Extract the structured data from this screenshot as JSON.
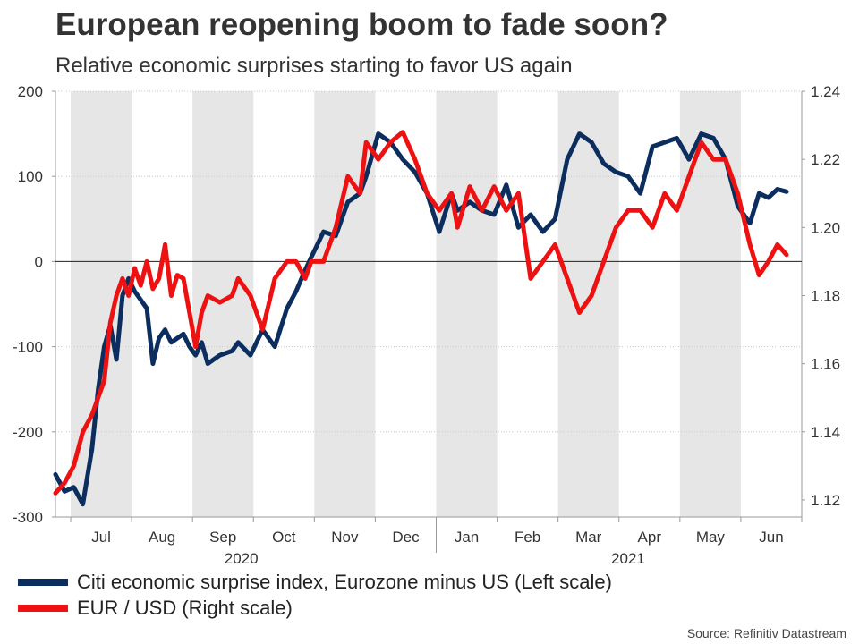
{
  "title": "European reopening boom to fade soon?",
  "subtitle": "Relative economic surprises starting to favor US again",
  "source": "Source: Refinitiv Datastream",
  "legend": [
    {
      "label": "Citi economic surprise index, Eurozone minus US (Left scale)",
      "color": "#0b2e5e"
    },
    {
      "label": "EUR / USD (Right scale)",
      "color": "#ee1111"
    }
  ],
  "chart_data": {
    "type": "line",
    "title": "European reopening boom to fade soon?",
    "left_axis": {
      "ylim": [
        -300,
        200
      ],
      "ticks": [
        -300,
        -200,
        -100,
        0,
        100,
        200
      ],
      "tick_labels": [
        "-300",
        "-200",
        "-100",
        "0",
        "100",
        "200"
      ]
    },
    "right_axis": {
      "ylim": [
        1.115,
        1.24
      ],
      "ticks": [
        1.12,
        1.14,
        1.16,
        1.18,
        1.2,
        1.22,
        1.24
      ],
      "tick_labels": [
        "1.12",
        "1.14",
        "1.16",
        "1.18",
        "1.20",
        "1.22",
        "1.24"
      ]
    },
    "x_range": [
      0,
      12.25
    ],
    "months": [
      "Jul",
      "Aug",
      "Sep",
      "Oct",
      "Nov",
      "Dec",
      "Jan",
      "Feb",
      "Mar",
      "Apr",
      "May",
      "Jun"
    ],
    "years": [
      {
        "label": "2020",
        "at": 3.05
      },
      {
        "label": "2021",
        "at": 9.4
      }
    ],
    "series": [
      {
        "name": "Citi economic surprise index, Eurozone minus US (Left scale)",
        "axis": "left",
        "color": "#0b2e5e",
        "x": [
          0,
          0.15,
          0.3,
          0.45,
          0.6,
          0.7,
          0.8,
          0.9,
          1.0,
          1.1,
          1.2,
          1.3,
          1.4,
          1.5,
          1.6,
          1.7,
          1.8,
          1.9,
          2.0,
          2.1,
          2.2,
          2.3,
          2.4,
          2.5,
          2.7,
          2.9,
          3.0,
          3.2,
          3.4,
          3.6,
          3.8,
          3.95,
          4.1,
          4.2,
          4.4,
          4.6,
          4.8,
          5.0,
          5.1,
          5.3,
          5.5,
          5.7,
          5.9,
          6.1,
          6.3,
          6.5,
          6.6,
          6.8,
          7.0,
          7.2,
          7.4,
          7.6,
          7.8,
          8.0,
          8.2,
          8.4,
          8.6,
          8.8,
          9.0,
          9.2,
          9.4,
          9.6,
          9.8,
          10.0,
          10.2,
          10.4,
          10.6,
          10.8,
          11.0,
          11.2,
          11.4,
          11.55,
          11.7,
          11.85,
          12.0
        ],
        "values": [
          -250,
          -270,
          -265,
          -285,
          -220,
          -150,
          -100,
          -75,
          -115,
          -40,
          -20,
          -35,
          -45,
          -55,
          -120,
          -90,
          -80,
          -95,
          -90,
          -85,
          -100,
          -110,
          -95,
          -120,
          -110,
          -105,
          -95,
          -110,
          -80,
          -100,
          -55,
          -35,
          -10,
          5,
          35,
          30,
          70,
          80,
          100,
          150,
          140,
          120,
          105,
          80,
          35,
          80,
          60,
          70,
          60,
          55,
          90,
          40,
          55,
          35,
          50,
          120,
          150,
          140,
          115,
          105,
          100,
          80,
          135,
          140,
          145,
          120,
          150,
          145,
          120,
          65,
          45,
          80,
          75,
          85,
          82
        ]
      },
      {
        "name": "EUR / USD (Right scale)",
        "axis": "right",
        "color": "#ee1111",
        "x": [
          0,
          0.15,
          0.3,
          0.45,
          0.6,
          0.8,
          0.9,
          1.0,
          1.1,
          1.2,
          1.3,
          1.4,
          1.5,
          1.6,
          1.7,
          1.8,
          1.9,
          2.0,
          2.1,
          2.2,
          2.3,
          2.4,
          2.5,
          2.7,
          2.9,
          3.0,
          3.2,
          3.4,
          3.6,
          3.8,
          3.95,
          4.1,
          4.2,
          4.4,
          4.6,
          4.8,
          5.0,
          5.1,
          5.3,
          5.5,
          5.7,
          5.9,
          6.1,
          6.3,
          6.5,
          6.6,
          6.8,
          7.0,
          7.2,
          7.4,
          7.6,
          7.8,
          8.0,
          8.2,
          8.4,
          8.6,
          8.8,
          9.0,
          9.2,
          9.4,
          9.6,
          9.8,
          10.0,
          10.2,
          10.4,
          10.6,
          10.8,
          11.0,
          11.2,
          11.4,
          11.55,
          11.7,
          11.85,
          12.0
        ],
        "values": [
          1.122,
          1.125,
          1.13,
          1.14,
          1.145,
          1.155,
          1.172,
          1.18,
          1.185,
          1.18,
          1.188,
          1.183,
          1.19,
          1.182,
          1.185,
          1.195,
          1.18,
          1.186,
          1.185,
          1.175,
          1.165,
          1.175,
          1.18,
          1.178,
          1.18,
          1.185,
          1.18,
          1.17,
          1.185,
          1.19,
          1.19,
          1.185,
          1.19,
          1.19,
          1.2,
          1.215,
          1.21,
          1.225,
          1.22,
          1.225,
          1.228,
          1.22,
          1.21,
          1.205,
          1.21,
          1.2,
          1.212,
          1.205,
          1.212,
          1.205,
          1.21,
          1.185,
          1.19,
          1.195,
          1.185,
          1.175,
          1.18,
          1.19,
          1.2,
          1.205,
          1.205,
          1.2,
          1.21,
          1.205,
          1.215,
          1.225,
          1.22,
          1.22,
          1.21,
          1.195,
          1.186,
          1.19,
          1.195,
          1.192
        ]
      }
    ],
    "baseline": 0,
    "grid": true
  }
}
